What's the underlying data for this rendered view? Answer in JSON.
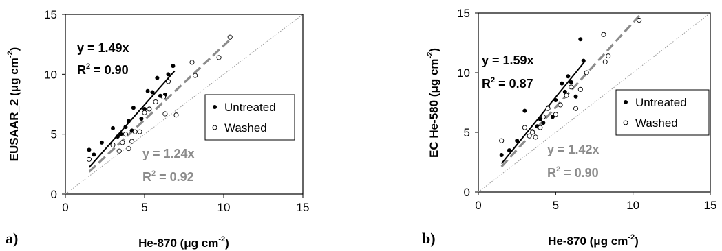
{
  "chart_data": [
    {
      "type": "scatter",
      "panel_label": "a)",
      "xlabel_main": "He-870 (",
      "xlabel_mu": "μ",
      "xlabel_unit": "g cm",
      "xlabel_exp": "-2",
      "xlabel_close": ")",
      "ylabel_main": "EUSAAR_2 (",
      "ylabel_mu": "μ",
      "ylabel_unit": "g cm",
      "ylabel_exp": "-2",
      "ylabel_close": ")",
      "xlim": [
        0,
        15
      ],
      "ylim": [
        0,
        15
      ],
      "xticks": [
        "0",
        "5",
        "10",
        "15"
      ],
      "yticks": [
        "0",
        "5",
        "10",
        "15"
      ],
      "legend_position": "right",
      "legend": [
        "Untreated",
        "Washed"
      ],
      "series": [
        {
          "name": "Untreated",
          "marker": "filled-circle",
          "color": "#000000",
          "points": [
            [
              1.5,
              3.7
            ],
            [
              1.8,
              3.3
            ],
            [
              2.3,
              4.3
            ],
            [
              3.0,
              5.5
            ],
            [
              3.3,
              4.8
            ],
            [
              3.5,
              5.0
            ],
            [
              3.8,
              5.6
            ],
            [
              4.0,
              6.1
            ],
            [
              4.2,
              5.3
            ],
            [
              4.3,
              7.2
            ],
            [
              4.8,
              6.3
            ],
            [
              5.0,
              7.1
            ],
            [
              5.2,
              8.6
            ],
            [
              5.5,
              8.5
            ],
            [
              5.8,
              9.7
            ],
            [
              6.0,
              8.2
            ],
            [
              6.3,
              8.3
            ],
            [
              6.5,
              10.0
            ],
            [
              6.8,
              10.7
            ]
          ],
          "fit": {
            "slope": 1.49,
            "equation": "y = 1.49x",
            "r2_prefix": "R",
            "r2_exp": "2",
            "r2_value": " = 0.90",
            "color": "#000000",
            "style": "solid",
            "x_range": [
              1.5,
              6.9
            ]
          }
        },
        {
          "name": "Washed",
          "marker": "open-circle",
          "color": "#000000",
          "points": [
            [
              1.5,
              2.9
            ],
            [
              3.0,
              4.1
            ],
            [
              3.4,
              3.6
            ],
            [
              3.6,
              4.3
            ],
            [
              3.8,
              5.0
            ],
            [
              4.0,
              3.8
            ],
            [
              4.2,
              4.4
            ],
            [
              4.4,
              5.2
            ],
            [
              4.7,
              5.2
            ],
            [
              5.0,
              6.8
            ],
            [
              5.3,
              7.1
            ],
            [
              5.7,
              7.7
            ],
            [
              6.2,
              8.1
            ],
            [
              6.3,
              6.7
            ],
            [
              6.5,
              9.4
            ],
            [
              7.0,
              6.6
            ],
            [
              8.0,
              11.0
            ],
            [
              8.2,
              9.9
            ],
            [
              9.7,
              11.4
            ],
            [
              10.4,
              13.1
            ]
          ],
          "fit": {
            "slope": 1.24,
            "equation": "y = 1.24x",
            "r2_prefix": "R",
            "r2_exp": "2",
            "r2_value": " = 0.92",
            "color": "#8c8c8c",
            "style": "dashed",
            "x_range": [
              1.5,
              10.4
            ]
          }
        }
      ],
      "reference_line": {
        "slope": 1,
        "style": "dotted",
        "color": "#999999"
      }
    },
    {
      "type": "scatter",
      "panel_label": "b)",
      "xlabel_main": "He-870 (",
      "xlabel_mu": "μ",
      "xlabel_unit": "g cm",
      "xlabel_exp": "-2",
      "xlabel_close": ")",
      "ylabel_main": "EC He-580 (",
      "ylabel_mu": "μ",
      "ylabel_unit": "g cm",
      "ylabel_exp": "-2",
      "ylabel_close": ")",
      "xlim": [
        0,
        15
      ],
      "ylim": [
        0,
        15
      ],
      "xticks": [
        "0",
        "5",
        "10",
        "15"
      ],
      "yticks": [
        "0",
        "5",
        "10",
        "15"
      ],
      "legend_position": "right",
      "legend": [
        "Untreated",
        "Washed"
      ],
      "series": [
        {
          "name": "Untreated",
          "marker": "filled-circle",
          "color": "#000000",
          "points": [
            [
              1.5,
              3.1
            ],
            [
              2.0,
              3.5
            ],
            [
              2.5,
              4.3
            ],
            [
              3.0,
              6.8
            ],
            [
              3.5,
              5.1
            ],
            [
              3.8,
              5.5
            ],
            [
              4.0,
              6.1
            ],
            [
              4.2,
              5.8
            ],
            [
              4.5,
              7.1
            ],
            [
              4.8,
              6.3
            ],
            [
              5.0,
              7.7
            ],
            [
              5.4,
              9.1
            ],
            [
              5.6,
              8.4
            ],
            [
              5.8,
              9.7
            ],
            [
              6.0,
              9.2
            ],
            [
              6.3,
              8.0
            ],
            [
              6.6,
              12.8
            ],
            [
              6.8,
              11.0
            ]
          ],
          "fit": {
            "slope": 1.59,
            "equation": "y = 1.59x",
            "r2_prefix": "R",
            "r2_exp": "2",
            "r2_value": " = 0.87",
            "color": "#000000",
            "style": "solid",
            "x_range": [
              1.5,
              6.9
            ]
          }
        },
        {
          "name": "Washed",
          "marker": "open-circle",
          "color": "#000000",
          "points": [
            [
              1.5,
              4.3
            ],
            [
              3.0,
              5.4
            ],
            [
              3.3,
              4.7
            ],
            [
              3.5,
              5.0
            ],
            [
              3.7,
              4.6
            ],
            [
              4.0,
              5.4
            ],
            [
              4.2,
              6.3
            ],
            [
              4.5,
              7.0
            ],
            [
              5.0,
              6.5
            ],
            [
              5.3,
              7.3
            ],
            [
              5.7,
              8.1
            ],
            [
              6.0,
              8.8
            ],
            [
              6.3,
              7.0
            ],
            [
              6.6,
              8.6
            ],
            [
              7.0,
              10.0
            ],
            [
              8.1,
              13.2
            ],
            [
              8.2,
              10.9
            ],
            [
              8.4,
              11.4
            ],
            [
              10.4,
              14.4
            ]
          ],
          "fit": {
            "slope": 1.42,
            "equation": "y = 1.42x",
            "r2_prefix": "R",
            "r2_exp": "2",
            "r2_value": " = 0.90",
            "color": "#8c8c8c",
            "style": "dashed",
            "x_range": [
              1.5,
              10.4
            ]
          }
        }
      ],
      "reference_line": {
        "slope": 1,
        "style": "dotted",
        "color": "#999999"
      }
    }
  ]
}
